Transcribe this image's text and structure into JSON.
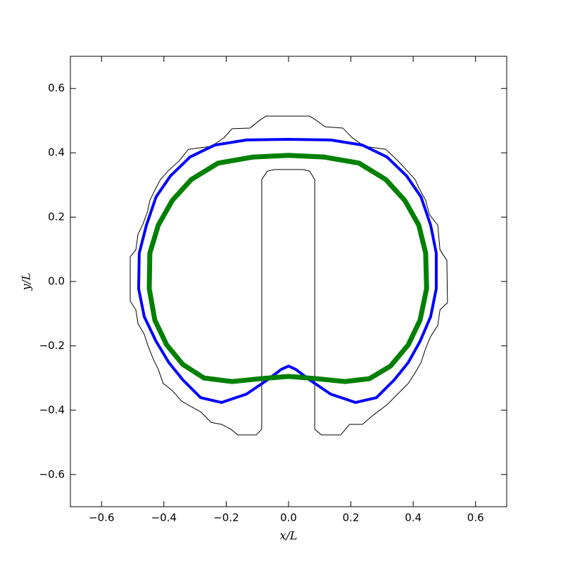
{
  "chart_data": {
    "type": "line",
    "xlabel": "x/L",
    "ylabel": "y/L",
    "xlim": [
      -0.7,
      0.7
    ],
    "ylim": [
      -0.7,
      0.7
    ],
    "xticks": [
      {
        "value": -0.6,
        "label": "−0.6"
      },
      {
        "value": -0.4,
        "label": "−0.4"
      },
      {
        "value": -0.2,
        "label": "−0.2"
      },
      {
        "value": 0,
        "label": "0.0"
      },
      0.2,
      0.4,
      0.6
    ],
    "yticks": [
      {
        "value": -0.6,
        "label": "−0.6"
      },
      {
        "value": -0.4,
        "label": "−0.4"
      },
      {
        "value": -0.2,
        "label": "−0.2"
      },
      {
        "value": 0,
        "label": "0.0"
      },
      0.2,
      0.4,
      0.6
    ],
    "grid": false,
    "series": [
      {
        "color": "#000000",
        "x": [
          -0.086,
          -0.104,
          -0.163,
          -0.185,
          -0.215,
          -0.248,
          -0.282,
          -0.316,
          -0.343,
          -0.373,
          -0.402,
          -0.418,
          -0.434,
          -0.452,
          -0.463,
          -0.483,
          -0.49,
          -0.508,
          -0.508,
          -0.49,
          -0.483,
          -0.467,
          -0.452,
          -0.445,
          -0.429,
          -0.411,
          -0.384,
          -0.35,
          -0.321,
          -0.248,
          -0.208,
          -0.181,
          -0.124,
          -0.09,
          -0.072,
          0.068,
          0.086,
          0.117,
          0.174,
          0.203,
          0.244,
          0.312,
          0.35,
          0.379,
          0.406,
          0.422,
          0.44,
          0.452,
          0.479,
          0.486,
          0.508,
          0.51,
          0.486,
          0.479,
          0.456,
          0.44,
          0.425,
          0.406,
          0.384,
          0.35,
          0.316,
          0.271,
          0.237,
          0.196,
          0.167,
          0.106,
          0.084,
          0.084,
          0.068,
          0.045,
          -0.045,
          -0.068,
          -0.086,
          -0.086
        ],
        "values": [
          -0.459,
          -0.477,
          -0.477,
          -0.459,
          -0.444,
          -0.438,
          -0.405,
          -0.387,
          -0.372,
          -0.339,
          -0.317,
          -0.273,
          -0.241,
          -0.197,
          -0.164,
          -0.131,
          -0.088,
          -0.061,
          0.077,
          0.098,
          0.147,
          0.179,
          0.219,
          0.252,
          0.284,
          0.317,
          0.346,
          0.376,
          0.411,
          0.42,
          0.446,
          0.475,
          0.477,
          0.503,
          0.514,
          0.514,
          0.503,
          0.481,
          0.477,
          0.448,
          0.42,
          0.411,
          0.376,
          0.346,
          0.317,
          0.284,
          0.252,
          0.208,
          0.175,
          0.098,
          0.066,
          -0.066,
          -0.088,
          -0.136,
          -0.171,
          -0.208,
          -0.252,
          -0.284,
          -0.317,
          -0.35,
          -0.383,
          -0.416,
          -0.444,
          -0.444,
          -0.477,
          -0.477,
          -0.459,
          0.317,
          0.343,
          0.348,
          0.348,
          0.343,
          0.317,
          -0.459
        ]
      },
      {
        "color": "#0000ff",
        "x": [
          -0.215,
          -0.135,
          -0.068,
          -0.023,
          0,
          0.023,
          0.068,
          0.135,
          0.215,
          0.282,
          0.339,
          0.384,
          0.422,
          0.456,
          0.474,
          0.474,
          0.456,
          0.425,
          0.379,
          0.316,
          0.237,
          0.135,
          0,
          -0.135,
          -0.237,
          -0.316,
          -0.379,
          -0.425,
          -0.456,
          -0.479,
          -0.481,
          -0.463,
          -0.425,
          -0.384,
          -0.339,
          -0.282,
          -0.215
        ],
        "values": [
          -0.376,
          -0.35,
          -0.306,
          -0.273,
          -0.263,
          -0.273,
          -0.306,
          -0.35,
          -0.376,
          -0.361,
          -0.306,
          -0.252,
          -0.186,
          -0.109,
          -0.022,
          0.088,
          0.175,
          0.263,
          0.328,
          0.387,
          0.424,
          0.44,
          0.442,
          0.44,
          0.424,
          0.387,
          0.328,
          0.263,
          0.175,
          0.088,
          -0.022,
          -0.109,
          -0.186,
          -0.252,
          -0.306,
          -0.361,
          -0.376
        ]
      },
      {
        "color": "#008000",
        "x": [
          -0.181,
          -0.09,
          0,
          0.09,
          0.181,
          0.26,
          0.327,
          0.384,
          0.422,
          0.443,
          0.44,
          0.418,
          0.373,
          0.312,
          0.226,
          0.113,
          0,
          -0.113,
          -0.226,
          -0.312,
          -0.373,
          -0.418,
          -0.445,
          -0.447,
          -0.429,
          -0.391,
          -0.339,
          -0.271,
          -0.181
        ],
        "values": [
          -0.311,
          -0.302,
          -0.295,
          -0.302,
          -0.311,
          -0.302,
          -0.263,
          -0.197,
          -0.12,
          -0.022,
          0.088,
          0.175,
          0.252,
          0.317,
          0.368,
          0.387,
          0.392,
          0.387,
          0.368,
          0.317,
          0.252,
          0.175,
          0.088,
          -0.022,
          -0.12,
          -0.197,
          -0.258,
          -0.3,
          -0.311
        ]
      }
    ]
  }
}
